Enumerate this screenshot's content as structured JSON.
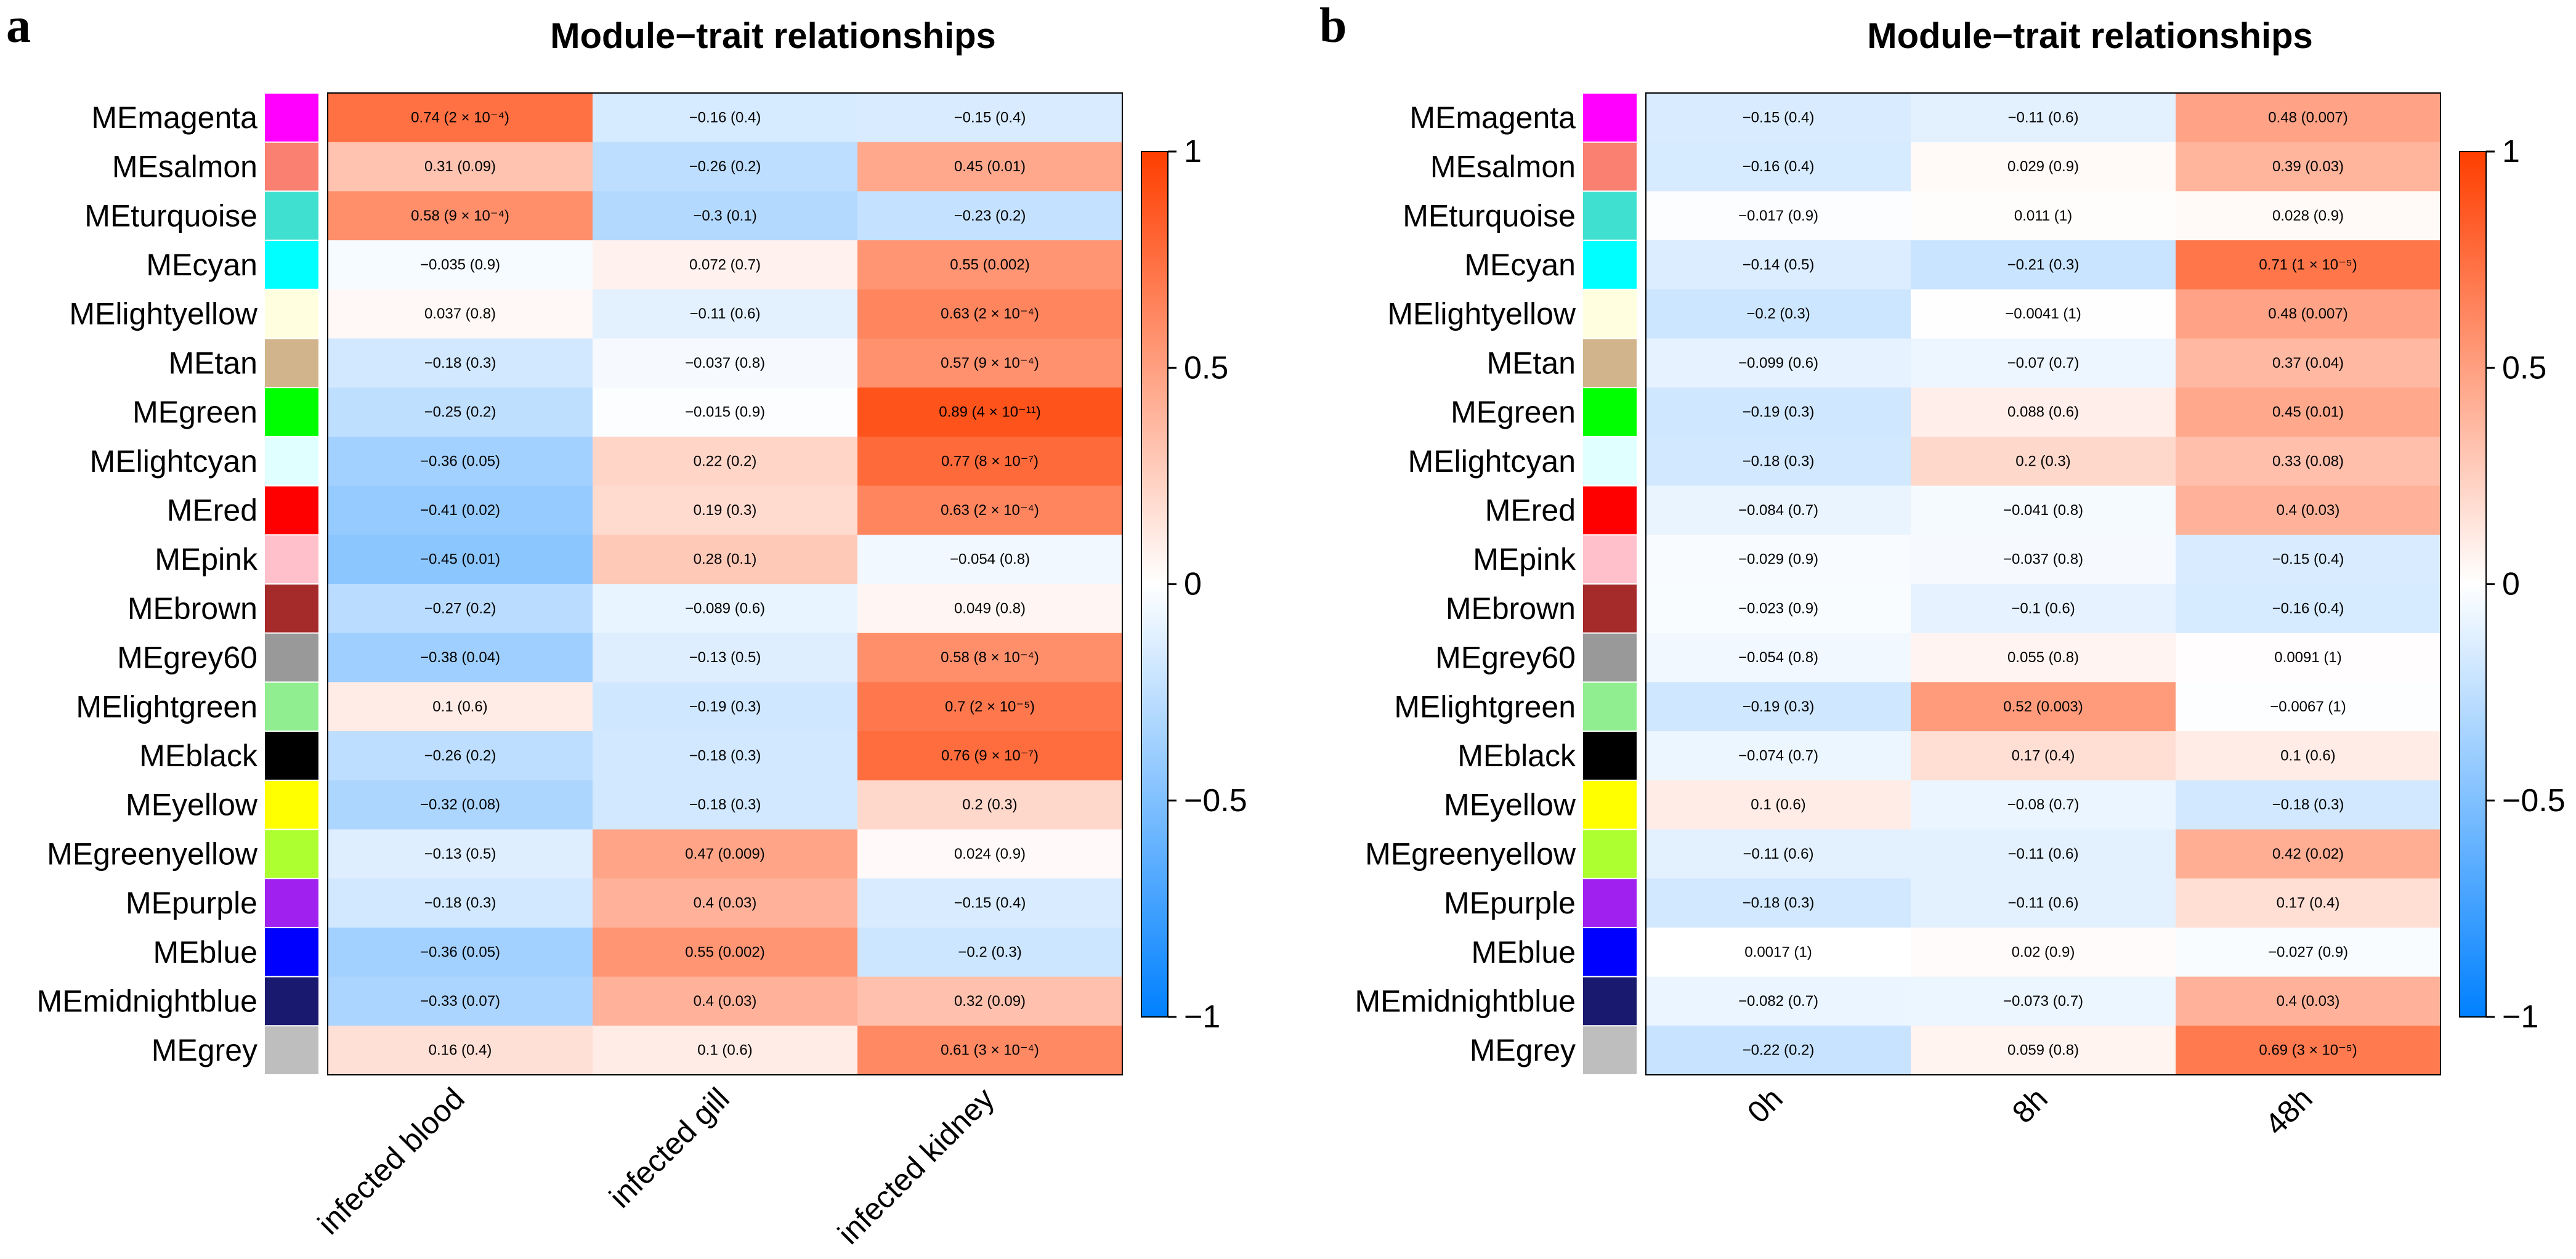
{
  "chart_data": [
    {
      "type": "heatmap",
      "panel": "a",
      "title": "Module−trait relationships",
      "rows": [
        "MEmagenta",
        "MEsalmon",
        "MEturquoise",
        "MEcyan",
        "MElightyellow",
        "MEtan",
        "MEgreen",
        "MElightcyan",
        "MEred",
        "MEpink",
        "MEbrown",
        "MEgrey60",
        "MElightgreen",
        "MEblack",
        "MEyellow",
        "MEgreenyellow",
        "MEpurple",
        "MEblue",
        "MEmidnightblue",
        "MEgrey"
      ],
      "row_colors": [
        "#ff00ff",
        "#fa8072",
        "#40e0d0",
        "#00ffff",
        "#ffffe0",
        "#d2b48c",
        "#00ff00",
        "#e0ffff",
        "#ff0000",
        "#ffc0cb",
        "#a52a2a",
        "#999999",
        "#90ee90",
        "#000000",
        "#ffff00",
        "#adff2f",
        "#a020f0",
        "#0000ff",
        "#191970",
        "#bebebe"
      ],
      "columns": [
        "infected blood",
        "infected gill",
        "infected kidney"
      ],
      "values": [
        [
          0.74,
          -0.16,
          -0.15
        ],
        [
          0.31,
          -0.26,
          0.45
        ],
        [
          0.58,
          -0.3,
          -0.23
        ],
        [
          -0.035,
          0.072,
          0.55
        ],
        [
          0.037,
          -0.11,
          0.63
        ],
        [
          -0.18,
          -0.037,
          0.57
        ],
        [
          -0.25,
          -0.015,
          0.89
        ],
        [
          -0.36,
          0.22,
          0.77
        ],
        [
          -0.41,
          0.19,
          0.63
        ],
        [
          -0.45,
          0.28,
          -0.054
        ],
        [
          -0.27,
          -0.089,
          0.049
        ],
        [
          -0.38,
          -0.13,
          0.58
        ],
        [
          0.1,
          -0.19,
          0.7
        ],
        [
          -0.26,
          -0.18,
          0.76
        ],
        [
          -0.32,
          -0.18,
          0.2
        ],
        [
          -0.13,
          0.47,
          0.024
        ],
        [
          -0.18,
          0.4,
          -0.15
        ],
        [
          -0.36,
          0.55,
          -0.2
        ],
        [
          -0.33,
          0.4,
          0.32
        ],
        [
          0.16,
          0.1,
          0.61
        ]
      ],
      "labels": [
        [
          "0.74 (2 × 10⁻⁴)",
          "−0.16 (0.4)",
          "−0.15 (0.4)"
        ],
        [
          "0.31 (0.09)",
          "−0.26 (0.2)",
          "0.45 (0.01)"
        ],
        [
          "0.58 (9 × 10⁻⁴)",
          "−0.3 (0.1)",
          "−0.23 (0.2)"
        ],
        [
          "−0.035 (0.9)",
          "0.072 (0.7)",
          "0.55 (0.002)"
        ],
        [
          "0.037 (0.8)",
          "−0.11 (0.6)",
          "0.63 (2 × 10⁻⁴)"
        ],
        [
          "−0.18 (0.3)",
          "−0.037 (0.8)",
          "0.57 (9 × 10⁻⁴)"
        ],
        [
          "−0.25 (0.2)",
          "−0.015 (0.9)",
          "0.89 (4 × 10⁻¹¹)"
        ],
        [
          "−0.36 (0.05)",
          "0.22 (0.2)",
          "0.77 (8 × 10⁻⁷)"
        ],
        [
          "−0.41 (0.02)",
          "0.19 (0.3)",
          "0.63 (2 × 10⁻⁴)"
        ],
        [
          "−0.45 (0.01)",
          "0.28 (0.1)",
          "−0.054 (0.8)"
        ],
        [
          "−0.27 (0.2)",
          "−0.089 (0.6)",
          "0.049 (0.8)"
        ],
        [
          "−0.38 (0.04)",
          "−0.13 (0.5)",
          "0.58 (8 × 10⁻⁴)"
        ],
        [
          "0.1 (0.6)",
          "−0.19 (0.3)",
          "0.7 (2 × 10⁻⁵)"
        ],
        [
          "−0.26 (0.2)",
          "−0.18 (0.3)",
          "0.76 (9 × 10⁻⁷)"
        ],
        [
          "−0.32 (0.08)",
          "−0.18 (0.3)",
          "0.2 (0.3)"
        ],
        [
          "−0.13 (0.5)",
          "0.47 (0.009)",
          "0.024 (0.9)"
        ],
        [
          "−0.18 (0.3)",
          "0.4 (0.03)",
          "−0.15 (0.4)"
        ],
        [
          "−0.36 (0.05)",
          "0.55 (0.002)",
          "−0.2 (0.3)"
        ],
        [
          "−0.33 (0.07)",
          "0.4 (0.03)",
          "0.32 (0.09)"
        ],
        [
          "0.16 (0.4)",
          "0.1 (0.6)",
          "0.61 (3 × 10⁻⁴)"
        ]
      ],
      "colorbar": {
        "range": [
          -1,
          1
        ],
        "ticks": [
          1,
          0.5,
          0,
          -0.5,
          -1
        ],
        "tick_labels": [
          "1",
          "0.5",
          "0",
          "−0.5",
          "−1"
        ]
      }
    },
    {
      "type": "heatmap",
      "panel": "b",
      "title": "Module−trait relationships",
      "rows": [
        "MEmagenta",
        "MEsalmon",
        "MEturquoise",
        "MEcyan",
        "MElightyellow",
        "MEtan",
        "MEgreen",
        "MElightcyan",
        "MEred",
        "MEpink",
        "MEbrown",
        "MEgrey60",
        "MElightgreen",
        "MEblack",
        "MEyellow",
        "MEgreenyellow",
        "MEpurple",
        "MEblue",
        "MEmidnightblue",
        "MEgrey"
      ],
      "row_colors": [
        "#ff00ff",
        "#fa8072",
        "#40e0d0",
        "#00ffff",
        "#ffffe0",
        "#d2b48c",
        "#00ff00",
        "#e0ffff",
        "#ff0000",
        "#ffc0cb",
        "#a52a2a",
        "#999999",
        "#90ee90",
        "#000000",
        "#ffff00",
        "#adff2f",
        "#a020f0",
        "#0000ff",
        "#191970",
        "#bebebe"
      ],
      "columns": [
        "0h",
        "8h",
        "48h"
      ],
      "values": [
        [
          -0.15,
          -0.11,
          0.48
        ],
        [
          -0.16,
          0.029,
          0.39
        ],
        [
          -0.017,
          0.011,
          0.028
        ],
        [
          -0.14,
          -0.21,
          0.71
        ],
        [
          -0.2,
          -0.0041,
          0.48
        ],
        [
          -0.099,
          -0.07,
          0.37
        ],
        [
          -0.19,
          0.088,
          0.45
        ],
        [
          -0.18,
          0.2,
          0.33
        ],
        [
          -0.084,
          -0.041,
          0.4
        ],
        [
          -0.029,
          -0.037,
          -0.15
        ],
        [
          -0.023,
          -0.1,
          -0.16
        ],
        [
          -0.054,
          0.055,
          0.0091
        ],
        [
          -0.19,
          0.52,
          -0.0067
        ],
        [
          -0.074,
          0.17,
          0.1
        ],
        [
          0.1,
          -0.08,
          -0.18
        ],
        [
          -0.11,
          -0.11,
          0.42
        ],
        [
          -0.18,
          -0.11,
          0.17
        ],
        [
          0.0017,
          0.02,
          -0.027
        ],
        [
          -0.082,
          -0.073,
          0.4
        ],
        [
          -0.22,
          0.059,
          0.69
        ]
      ],
      "labels": [
        [
          "−0.15 (0.4)",
          "−0.11 (0.6)",
          "0.48 (0.007)"
        ],
        [
          "−0.16 (0.4)",
          "0.029 (0.9)",
          "0.39 (0.03)"
        ],
        [
          "−0.017 (0.9)",
          "0.011 (1)",
          "0.028 (0.9)"
        ],
        [
          "−0.14 (0.5)",
          "−0.21 (0.3)",
          "0.71 (1 × 10⁻⁵)"
        ],
        [
          "−0.2 (0.3)",
          "−0.0041 (1)",
          "0.48 (0.007)"
        ],
        [
          "−0.099 (0.6)",
          "−0.07 (0.7)",
          "0.37 (0.04)"
        ],
        [
          "−0.19 (0.3)",
          "0.088 (0.6)",
          "0.45 (0.01)"
        ],
        [
          "−0.18 (0.3)",
          "0.2 (0.3)",
          "0.33 (0.08)"
        ],
        [
          "−0.084 (0.7)",
          "−0.041 (0.8)",
          "0.4 (0.03)"
        ],
        [
          "−0.029 (0.9)",
          "−0.037 (0.8)",
          "−0.15 (0.4)"
        ],
        [
          "−0.023 (0.9)",
          "−0.1 (0.6)",
          "−0.16 (0.4)"
        ],
        [
          "−0.054 (0.8)",
          "0.055 (0.8)",
          "0.0091 (1)"
        ],
        [
          "−0.19 (0.3)",
          "0.52 (0.003)",
          "−0.0067 (1)"
        ],
        [
          "−0.074 (0.7)",
          "0.17 (0.4)",
          "0.1 (0.6)"
        ],
        [
          "0.1 (0.6)",
          "−0.08 (0.7)",
          "−0.18 (0.3)"
        ],
        [
          "−0.11 (0.6)",
          "−0.11 (0.6)",
          "0.42 (0.02)"
        ],
        [
          "−0.18 (0.3)",
          "−0.11 (0.6)",
          "0.17 (0.4)"
        ],
        [
          "0.0017 (1)",
          "0.02 (0.9)",
          "−0.027 (0.9)"
        ],
        [
          "−0.082 (0.7)",
          "−0.073 (0.7)",
          "0.4 (0.03)"
        ],
        [
          "−0.22 (0.2)",
          "0.059 (0.8)",
          "0.69 (3 × 10⁻⁵)"
        ]
      ],
      "colorbar": {
        "range": [
          -1,
          1
        ],
        "ticks": [
          1,
          0.5,
          0,
          -0.5,
          -1
        ],
        "tick_labels": [
          "1",
          "0.5",
          "0",
          "−0.5",
          "−1"
        ]
      }
    }
  ]
}
